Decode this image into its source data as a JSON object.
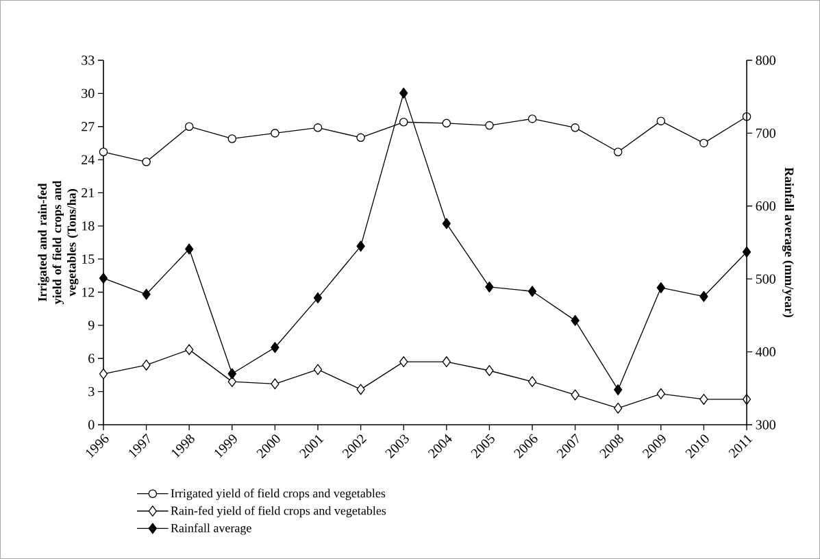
{
  "chart_data": {
    "type": "line",
    "categories": [
      "1996",
      "1997",
      "1998",
      "1999",
      "2000",
      "2001",
      "2002",
      "2003",
      "2004",
      "2005",
      "2006",
      "2007",
      "2008",
      "2009",
      "2010",
      "2011"
    ],
    "ylabel": "Irrigated and rain-fed yield of field crops and vegetables (Tons/ha)",
    "y2label": "Rainfall average (mm/year)",
    "ylim": [
      0,
      33
    ],
    "yticks": [
      0,
      3,
      6,
      9,
      12,
      15,
      18,
      21,
      24,
      27,
      30,
      33
    ],
    "y2lim": [
      300,
      800
    ],
    "y2ticks": [
      300,
      400,
      500,
      600,
      700,
      800
    ],
    "grid": false,
    "legend": "bottom left",
    "line_style": "solid",
    "series": [
      {
        "name": "Irrigated yield of field crops and vegetables",
        "color": "#000000",
        "marker": "circle",
        "values": [
          24.7,
          23.8,
          27.0,
          25.9,
          26.4,
          26.9,
          26.0,
          27.4,
          27.3,
          27.1,
          27.7,
          26.9,
          24.7,
          27.5,
          25.5,
          27.9
        ]
      },
      {
        "name": "Rain-fed yield of field crops and vegetables",
        "color": "#000000",
        "marker": "diamond",
        "values": [
          4.6,
          5.4,
          6.8,
          3.9,
          3.7,
          5.0,
          3.2,
          5.7,
          5.7,
          4.9,
          3.9,
          2.7,
          1.5,
          2.8,
          2.3,
          2.3
        ]
      },
      {
        "name": "Rainfall average",
        "color": "#000000",
        "marker": "diamond",
        "axis": "y2",
        "values": [
          501,
          479,
          541,
          370,
          406,
          474,
          545,
          755,
          576,
          489,
          483,
          443,
          348,
          488,
          476,
          537
        ]
      }
    ]
  }
}
